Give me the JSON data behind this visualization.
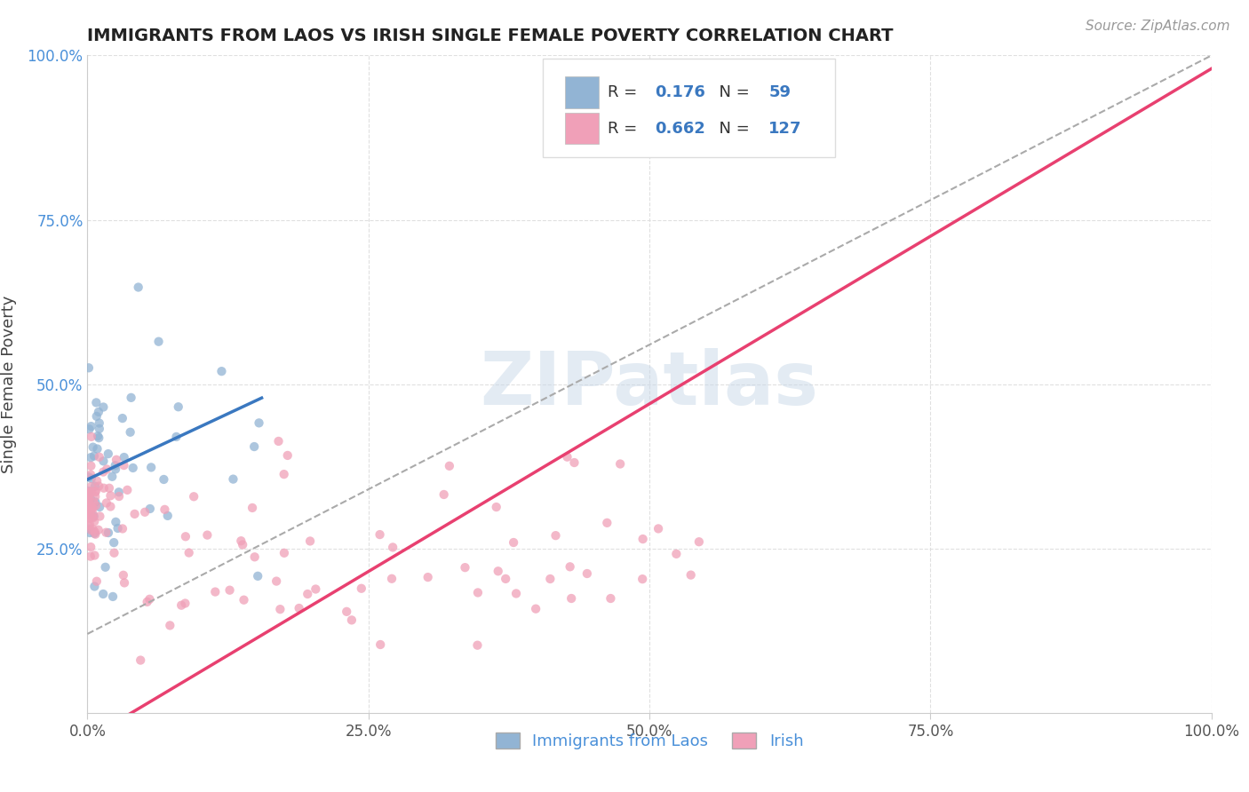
{
  "title": "IMMIGRANTS FROM LAOS VS IRISH SINGLE FEMALE POVERTY CORRELATION CHART",
  "source": "Source: ZipAtlas.com",
  "xlabel": "",
  "ylabel": "Single Female Poverty",
  "xlim": [
    0.0,
    1.0
  ],
  "ylim": [
    0.0,
    1.0
  ],
  "xticks": [
    0.0,
    0.25,
    0.5,
    0.75,
    1.0
  ],
  "xticklabels": [
    "0.0%",
    "25.0%",
    "50.0%",
    "75.0%",
    "100.0%"
  ],
  "yticks": [
    0.25,
    0.5,
    0.75,
    1.0
  ],
  "yticklabels": [
    "25.0%",
    "50.0%",
    "75.0%",
    "100.0%"
  ],
  "blue_R": 0.176,
  "blue_N": 59,
  "pink_R": 0.662,
  "pink_N": 127,
  "blue_color": "#92b4d4",
  "pink_color": "#f0a0b8",
  "blue_line_color": "#3a78c0",
  "pink_line_color": "#e84070",
  "gray_line_color": "#aaaaaa",
  "legend_label_blue": "Immigrants from Laos",
  "legend_label_pink": "Irish",
  "background_color": "#ffffff",
  "title_color": "#222222",
  "source_color": "#999999",
  "tick_color_y": "#4a90d9",
  "tick_color_x": "#555555",
  "grid_color": "#dddddd",
  "watermark_color": "#c8d8e8",
  "watermark_alpha": 0.5,
  "blue_line_intercept": 0.355,
  "blue_line_slope": 0.8,
  "blue_line_xmax": 0.155,
  "pink_line_intercept": -0.04,
  "pink_line_slope": 1.02,
  "gray_line_intercept": 0.12,
  "gray_line_slope": 0.88
}
